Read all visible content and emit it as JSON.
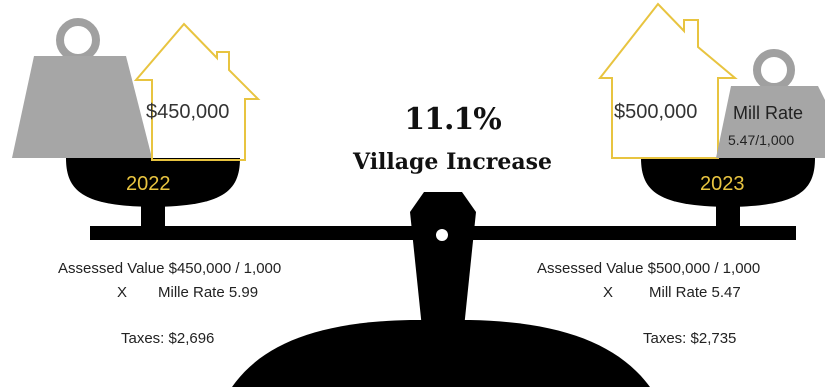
{
  "center": {
    "percent": "11.1%",
    "caption": "Village Increase"
  },
  "left": {
    "house_value": "$450,000",
    "year": "2022",
    "calc_line1": "Assessed Value $450,000 / 1,000",
    "calc_x": "X",
    "calc_rate": "Mille Rate 5.99",
    "taxes": "Taxes: $2,696"
  },
  "right": {
    "house_value": "$500,000",
    "year": "2023",
    "weight_label": "Mill Rate",
    "weight_value": "5.47/1,000",
    "calc_line1": "Assessed Value $500,000 / 1,000",
    "calc_x": "X",
    "calc_rate": "Mill Rate 5.47",
    "taxes": "Taxes: $2,735"
  },
  "colors": {
    "scale": "#000000",
    "weight": "#a6a6a6",
    "weight_ring": "#a0a0a0",
    "house_outline": "#e8c440",
    "year_text": "#e8c440"
  }
}
